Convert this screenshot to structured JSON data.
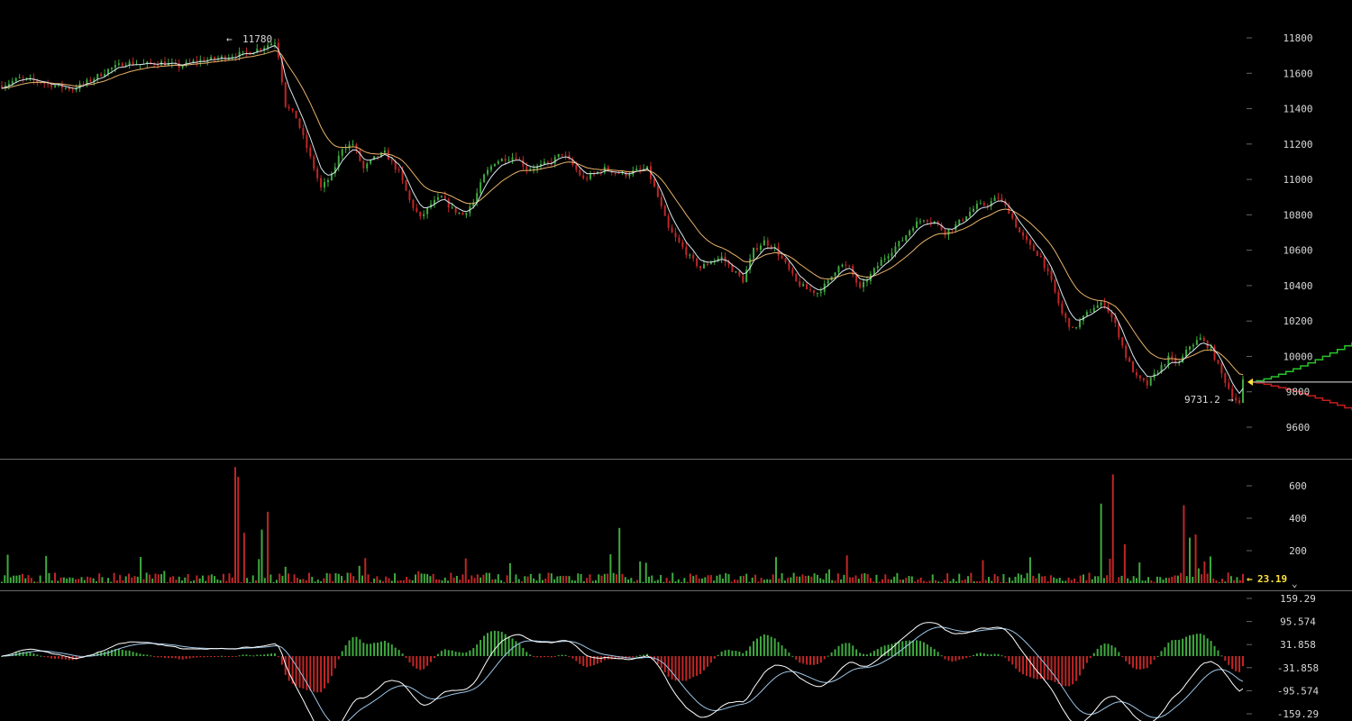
{
  "colors": {
    "background": "#000000",
    "up": "#3faa3f",
    "down": "#c02626",
    "ma_fast": "#d8e8f0",
    "ma_slow": "#e8b26a",
    "macd_line": "#ffffff",
    "signal_line": "#9ec6e6",
    "divider": "#6a6a6a",
    "current_marker": "#ffe23a",
    "bid_depth": "#29c229",
    "ask_depth": "#c41d1d",
    "neutral_depth": "#9a9a9a"
  },
  "icons": {
    "high_arrow": "left-arrow-icon",
    "low_arrow": "right-arrow-icon",
    "volume_arrow": "left-arrow-icon",
    "price_marker": "triangle-left-icon",
    "collapse": "chevron-down-icon"
  },
  "chart_data": [
    {
      "type": "candlestick",
      "panel": "price",
      "title": "",
      "ylim": [
        9530,
        11880
      ],
      "y_ticks": [
        "11800",
        "11600",
        "11400",
        "11200",
        "11000",
        "10800",
        "10600",
        "10400",
        "10200",
        "10000",
        "9800",
        "9600"
      ],
      "grid": false,
      "num_candles": 254,
      "path_anchors": [
        [
          0,
          11530
        ],
        [
          5,
          11570
        ],
        [
          10,
          11555
        ],
        [
          15,
          11530
        ],
        [
          20,
          11510
        ],
        [
          25,
          11560
        ],
        [
          30,
          11620
        ],
        [
          35,
          11660
        ],
        [
          40,
          11650
        ],
        [
          45,
          11660
        ],
        [
          50,
          11640
        ],
        [
          55,
          11670
        ],
        [
          60,
          11680
        ],
        [
          65,
          11700
        ],
        [
          70,
          11720
        ],
        [
          75,
          11760
        ],
        [
          77,
          11780
        ],
        [
          78,
          11700
        ],
        [
          80,
          11420
        ],
        [
          83,
          11350
        ],
        [
          86,
          11180
        ],
        [
          90,
          10950
        ],
        [
          93,
          11020
        ],
        [
          96,
          11180
        ],
        [
          99,
          11200
        ],
        [
          102,
          11060
        ],
        [
          105,
          11120
        ],
        [
          108,
          11150
        ],
        [
          112,
          11040
        ],
        [
          115,
          10880
        ],
        [
          118,
          10780
        ],
        [
          121,
          10860
        ],
        [
          124,
          10900
        ],
        [
          127,
          10830
        ],
        [
          130,
          10800
        ],
        [
          133,
          10870
        ],
        [
          136,
          11020
        ],
        [
          139,
          11100
        ],
        [
          142,
          11120
        ],
        [
          145,
          11130
        ],
        [
          148,
          11060
        ],
        [
          151,
          11070
        ],
        [
          155,
          11100
        ],
        [
          158,
          11150
        ],
        [
          161,
          11080
        ],
        [
          164,
          11000
        ],
        [
          167,
          11030
        ],
        [
          170,
          11060
        ],
        [
          173,
          11040
        ],
        [
          176,
          11030
        ],
        [
          179,
          11050
        ],
        [
          182,
          11060
        ],
        [
          185,
          10900
        ],
        [
          188,
          10720
        ],
        [
          191,
          10640
        ],
        [
          194,
          10560
        ],
        [
          197,
          10500
        ],
        [
          200,
          10540
        ],
        [
          203,
          10560
        ],
        [
          206,
          10490
        ],
        [
          209,
          10430
        ],
        [
          212,
          10600
        ],
        [
          215,
          10650
        ],
        [
          218,
          10610
        ],
        [
          221,
          10520
        ],
        [
          224,
          10420
        ],
        [
          227,
          10380
        ],
        [
          230,
          10360
        ],
        [
          233,
          10420
        ],
        [
          236,
          10520
        ],
        [
          239,
          10500
        ],
        [
          242,
          10380
        ],
        [
          245,
          10460
        ],
        [
          248,
          10540
        ],
        [
          251,
          10600
        ],
        [
          254,
          10660
        ]
      ],
      "candles_desc": "OHLC bars rendered as thin vertical wicks with up (green) / down (red) bodies; values estimated from axis",
      "annotations": [
        {
          "text": "11780",
          "arrow": "left",
          "value": 11780
        },
        {
          "text": "9731.2",
          "arrow": "right",
          "value": 9731.2
        }
      ],
      "moving_averages": [
        {
          "period": "fast",
          "color": "#d8e8f0"
        },
        {
          "period": "slow",
          "color": "#e8b26a"
        }
      ],
      "depth_overlay": {
        "bid_end": 10080,
        "ask_end": 9695,
        "neutral": 9855
      },
      "current_price_marker": 9855
    },
    {
      "type": "bar",
      "panel": "volume",
      "ylim": [
        0,
        720
      ],
      "y_ticks": [
        "600",
        "400",
        "200"
      ],
      "current_value": "23.19",
      "spikes": [
        {
          "index": 79,
          "value": 715
        },
        {
          "index": 80,
          "value": 655
        },
        {
          "index": 82,
          "value": 310
        },
        {
          "index": 88,
          "value": 330
        },
        {
          "index": 90,
          "value": 440
        },
        {
          "index": 209,
          "value": 340
        },
        {
          "index": 372,
          "value": 490
        },
        {
          "index": 376,
          "value": 670
        },
        {
          "index": 380,
          "value": 240
        },
        {
          "index": 400,
          "value": 480
        },
        {
          "index": 402,
          "value": 280
        },
        {
          "index": 404,
          "value": 300
        }
      ]
    },
    {
      "type": "macd",
      "panel": "macd",
      "ylim": [
        -159.29,
        159.29
      ],
      "y_ticks": [
        "159.29",
        "95.574",
        "31.858",
        "-31.858",
        "-95.574",
        "-159.29"
      ],
      "series": [
        {
          "name": "MACD",
          "color": "#ffffff"
        },
        {
          "name": "Signal",
          "color": "#9ec6e6"
        },
        {
          "name": "Histogram",
          "up_color": "#3faa3f",
          "down_color": "#c02626"
        }
      ]
    }
  ]
}
